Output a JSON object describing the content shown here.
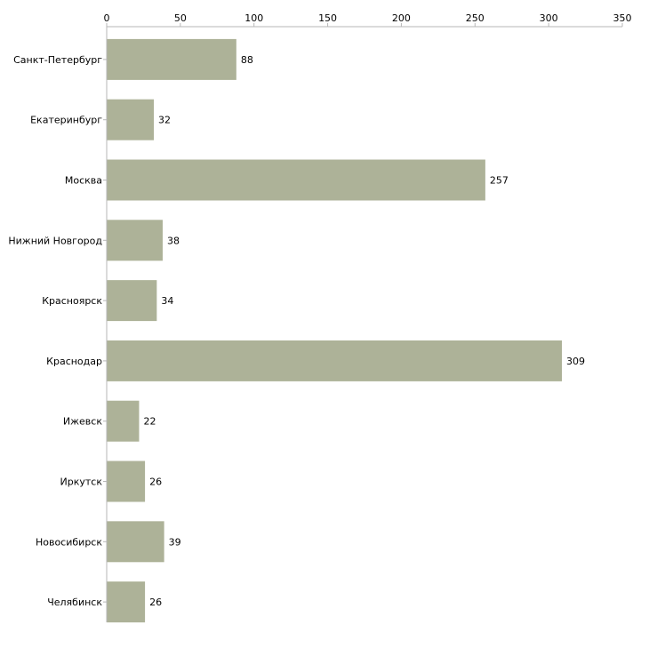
{
  "chart_data": {
    "type": "bar",
    "orientation": "horizontal",
    "title": "",
    "xlabel": "",
    "ylabel": "",
    "xlim": [
      0,
      350
    ],
    "x_ticks": [
      0,
      50,
      100,
      150,
      200,
      250,
      300,
      350
    ],
    "axis_position": "top",
    "grid": false,
    "bar_color": "#adb298",
    "categories": [
      "Санкт-Петербург",
      "Екатеринбург",
      "Москва",
      "Нижний Новгород",
      "Красноярск",
      "Краснодар",
      "Ижевск",
      "Иркутск",
      "Новосибирск",
      "Челябинск"
    ],
    "values": [
      88,
      32,
      257,
      38,
      34,
      309,
      22,
      26,
      39,
      26
    ]
  }
}
